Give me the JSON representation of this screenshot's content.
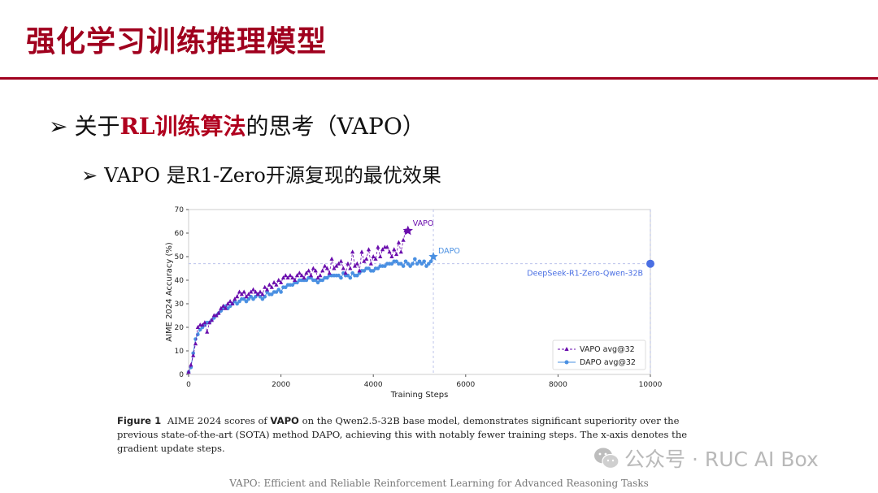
{
  "slide": {
    "title": "强化学习训练推理模型",
    "bullet1": {
      "marker": "➢",
      "pre": "关于",
      "highlight": "RL训练算法",
      "post": "的思考（VAPO）"
    },
    "bullet2": {
      "marker": "➢",
      "text": "VAPO 是R1-Zero开源复现的最优效果"
    }
  },
  "caption": {
    "label": "Figure 1",
    "part1": " AIME 2024 scores of ",
    "bold": "VAPO",
    "part2": " on the Qwen2.5-32B base model, demonstrates significant superiority over the previous state-of-the-art (SOTA) method DAPO, achieving this with notably fewer training steps. The x-axis denotes the gradient update steps."
  },
  "watermark": {
    "text": "公众号 · RUC AI Box",
    "icon": "wechat-icon"
  },
  "footer": {
    "text": "VAPO: Efficient and Reliable Reinforcement Learning for Advanced Reasoning Tasks"
  },
  "chart_data": {
    "type": "line",
    "xlabel": "Training Steps",
    "ylabel": "AIME 2024 Accuracy (%)",
    "xlim": [
      0,
      10000
    ],
    "ylim": [
      0,
      70
    ],
    "xticks": [
      0,
      2000,
      4000,
      6000,
      8000,
      10000
    ],
    "yticks": [
      0,
      10,
      20,
      30,
      40,
      50,
      60,
      70
    ],
    "grid": false,
    "legend": "bottom-right",
    "colors": {
      "vapo": "#6a0dad",
      "dapo": "#4a90e2",
      "deepseek": "#4a6fe3"
    },
    "series": [
      {
        "name": "VAPO avg@32",
        "marker": "triangle",
        "x": [
          0,
          50,
          100,
          150,
          200,
          250,
          300,
          350,
          400,
          450,
          500,
          550,
          600,
          650,
          700,
          750,
          800,
          850,
          900,
          950,
          1000,
          1050,
          1100,
          1150,
          1200,
          1250,
          1300,
          1350,
          1400,
          1450,
          1500,
          1550,
          1600,
          1650,
          1700,
          1750,
          1800,
          1850,
          1900,
          1950,
          2000,
          2050,
          2100,
          2150,
          2200,
          2250,
          2300,
          2350,
          2400,
          2450,
          2500,
          2550,
          2600,
          2650,
          2700,
          2750,
          2800,
          2850,
          2900,
          2950,
          3000,
          3050,
          3100,
          3150,
          3200,
          3250,
          3300,
          3350,
          3400,
          3450,
          3500,
          3550,
          3600,
          3650,
          3700,
          3750,
          3800,
          3850,
          3900,
          3950,
          4000,
          4050,
          4100,
          4150,
          4200,
          4250,
          4300,
          4350,
          4400,
          4450,
          4500,
          4550,
          4600,
          4650,
          4700,
          4750
        ],
        "y": [
          1,
          4,
          8,
          13,
          20,
          21,
          21,
          22,
          18,
          22,
          23,
          25,
          25,
          26,
          28,
          29,
          28,
          30,
          31,
          30,
          32,
          33,
          35,
          34,
          35,
          33,
          34,
          35,
          36,
          35,
          34,
          35,
          34,
          37,
          36,
          38,
          37,
          39,
          38,
          40,
          39,
          41,
          42,
          41,
          42,
          41,
          40,
          42,
          43,
          42,
          41,
          43,
          44,
          42,
          45,
          44,
          41,
          42,
          44,
          46,
          45,
          43,
          49,
          45,
          46,
          47,
          48,
          45,
          43,
          47,
          45,
          52,
          46,
          47,
          44,
          52,
          48,
          49,
          53,
          47,
          50,
          49,
          54,
          50,
          53,
          54,
          54,
          52,
          50,
          53,
          51,
          56,
          52,
          57,
          61,
          61
        ]
      },
      {
        "name": "DAPO avg@32",
        "marker": "circle",
        "x": [
          0,
          50,
          100,
          150,
          200,
          250,
          300,
          350,
          400,
          450,
          500,
          550,
          600,
          650,
          700,
          750,
          800,
          850,
          900,
          950,
          1000,
          1050,
          1100,
          1150,
          1200,
          1250,
          1300,
          1350,
          1400,
          1450,
          1500,
          1550,
          1600,
          1650,
          1700,
          1750,
          1800,
          1850,
          1900,
          1950,
          2000,
          2050,
          2100,
          2150,
          2200,
          2250,
          2300,
          2350,
          2400,
          2450,
          2500,
          2550,
          2600,
          2650,
          2700,
          2750,
          2800,
          2850,
          2900,
          2950,
          3000,
          3050,
          3100,
          3150,
          3200,
          3250,
          3300,
          3350,
          3400,
          3450,
          3500,
          3550,
          3600,
          3650,
          3700,
          3750,
          3800,
          3850,
          3900,
          3950,
          4000,
          4050,
          4100,
          4150,
          4200,
          4250,
          4300,
          4350,
          4400,
          4450,
          4500,
          4550,
          4600,
          4650,
          4700,
          4750,
          4800,
          4850,
          4900,
          4950,
          5000,
          5050,
          5100,
          5150,
          5200,
          5250,
          5300
        ],
        "y": [
          1,
          3,
          9,
          15,
          17,
          19,
          20,
          21,
          22,
          22,
          23,
          24,
          25,
          26,
          27,
          28,
          29,
          28,
          29,
          30,
          31,
          30,
          31,
          32,
          32,
          31,
          32,
          33,
          32,
          33,
          34,
          33,
          32,
          33,
          35,
          34,
          34,
          35,
          35,
          36,
          35,
          37,
          37,
          38,
          38,
          38,
          39,
          39,
          40,
          40,
          40,
          40,
          41,
          41,
          40,
          40,
          39,
          40,
          40,
          41,
          41,
          42,
          42,
          42,
          42,
          42,
          41,
          43,
          42,
          42,
          41,
          43,
          42,
          42,
          43,
          44,
          44,
          45,
          45,
          44,
          44,
          45,
          45,
          46,
          46,
          46,
          47,
          47,
          47,
          48,
          48,
          47,
          47,
          46,
          48,
          47,
          46,
          47,
          49,
          47,
          48,
          47,
          48,
          46,
          47,
          48,
          50
        ]
      }
    ],
    "annotations": [
      {
        "label": "VAPO",
        "x": 4750,
        "y": 61
      },
      {
        "label": "DAPO",
        "x": 5300,
        "y": 50
      },
      {
        "label": "DeepSeek-R1-Zero-Qwen-32B",
        "x": 10000,
        "y": 47
      }
    ]
  }
}
